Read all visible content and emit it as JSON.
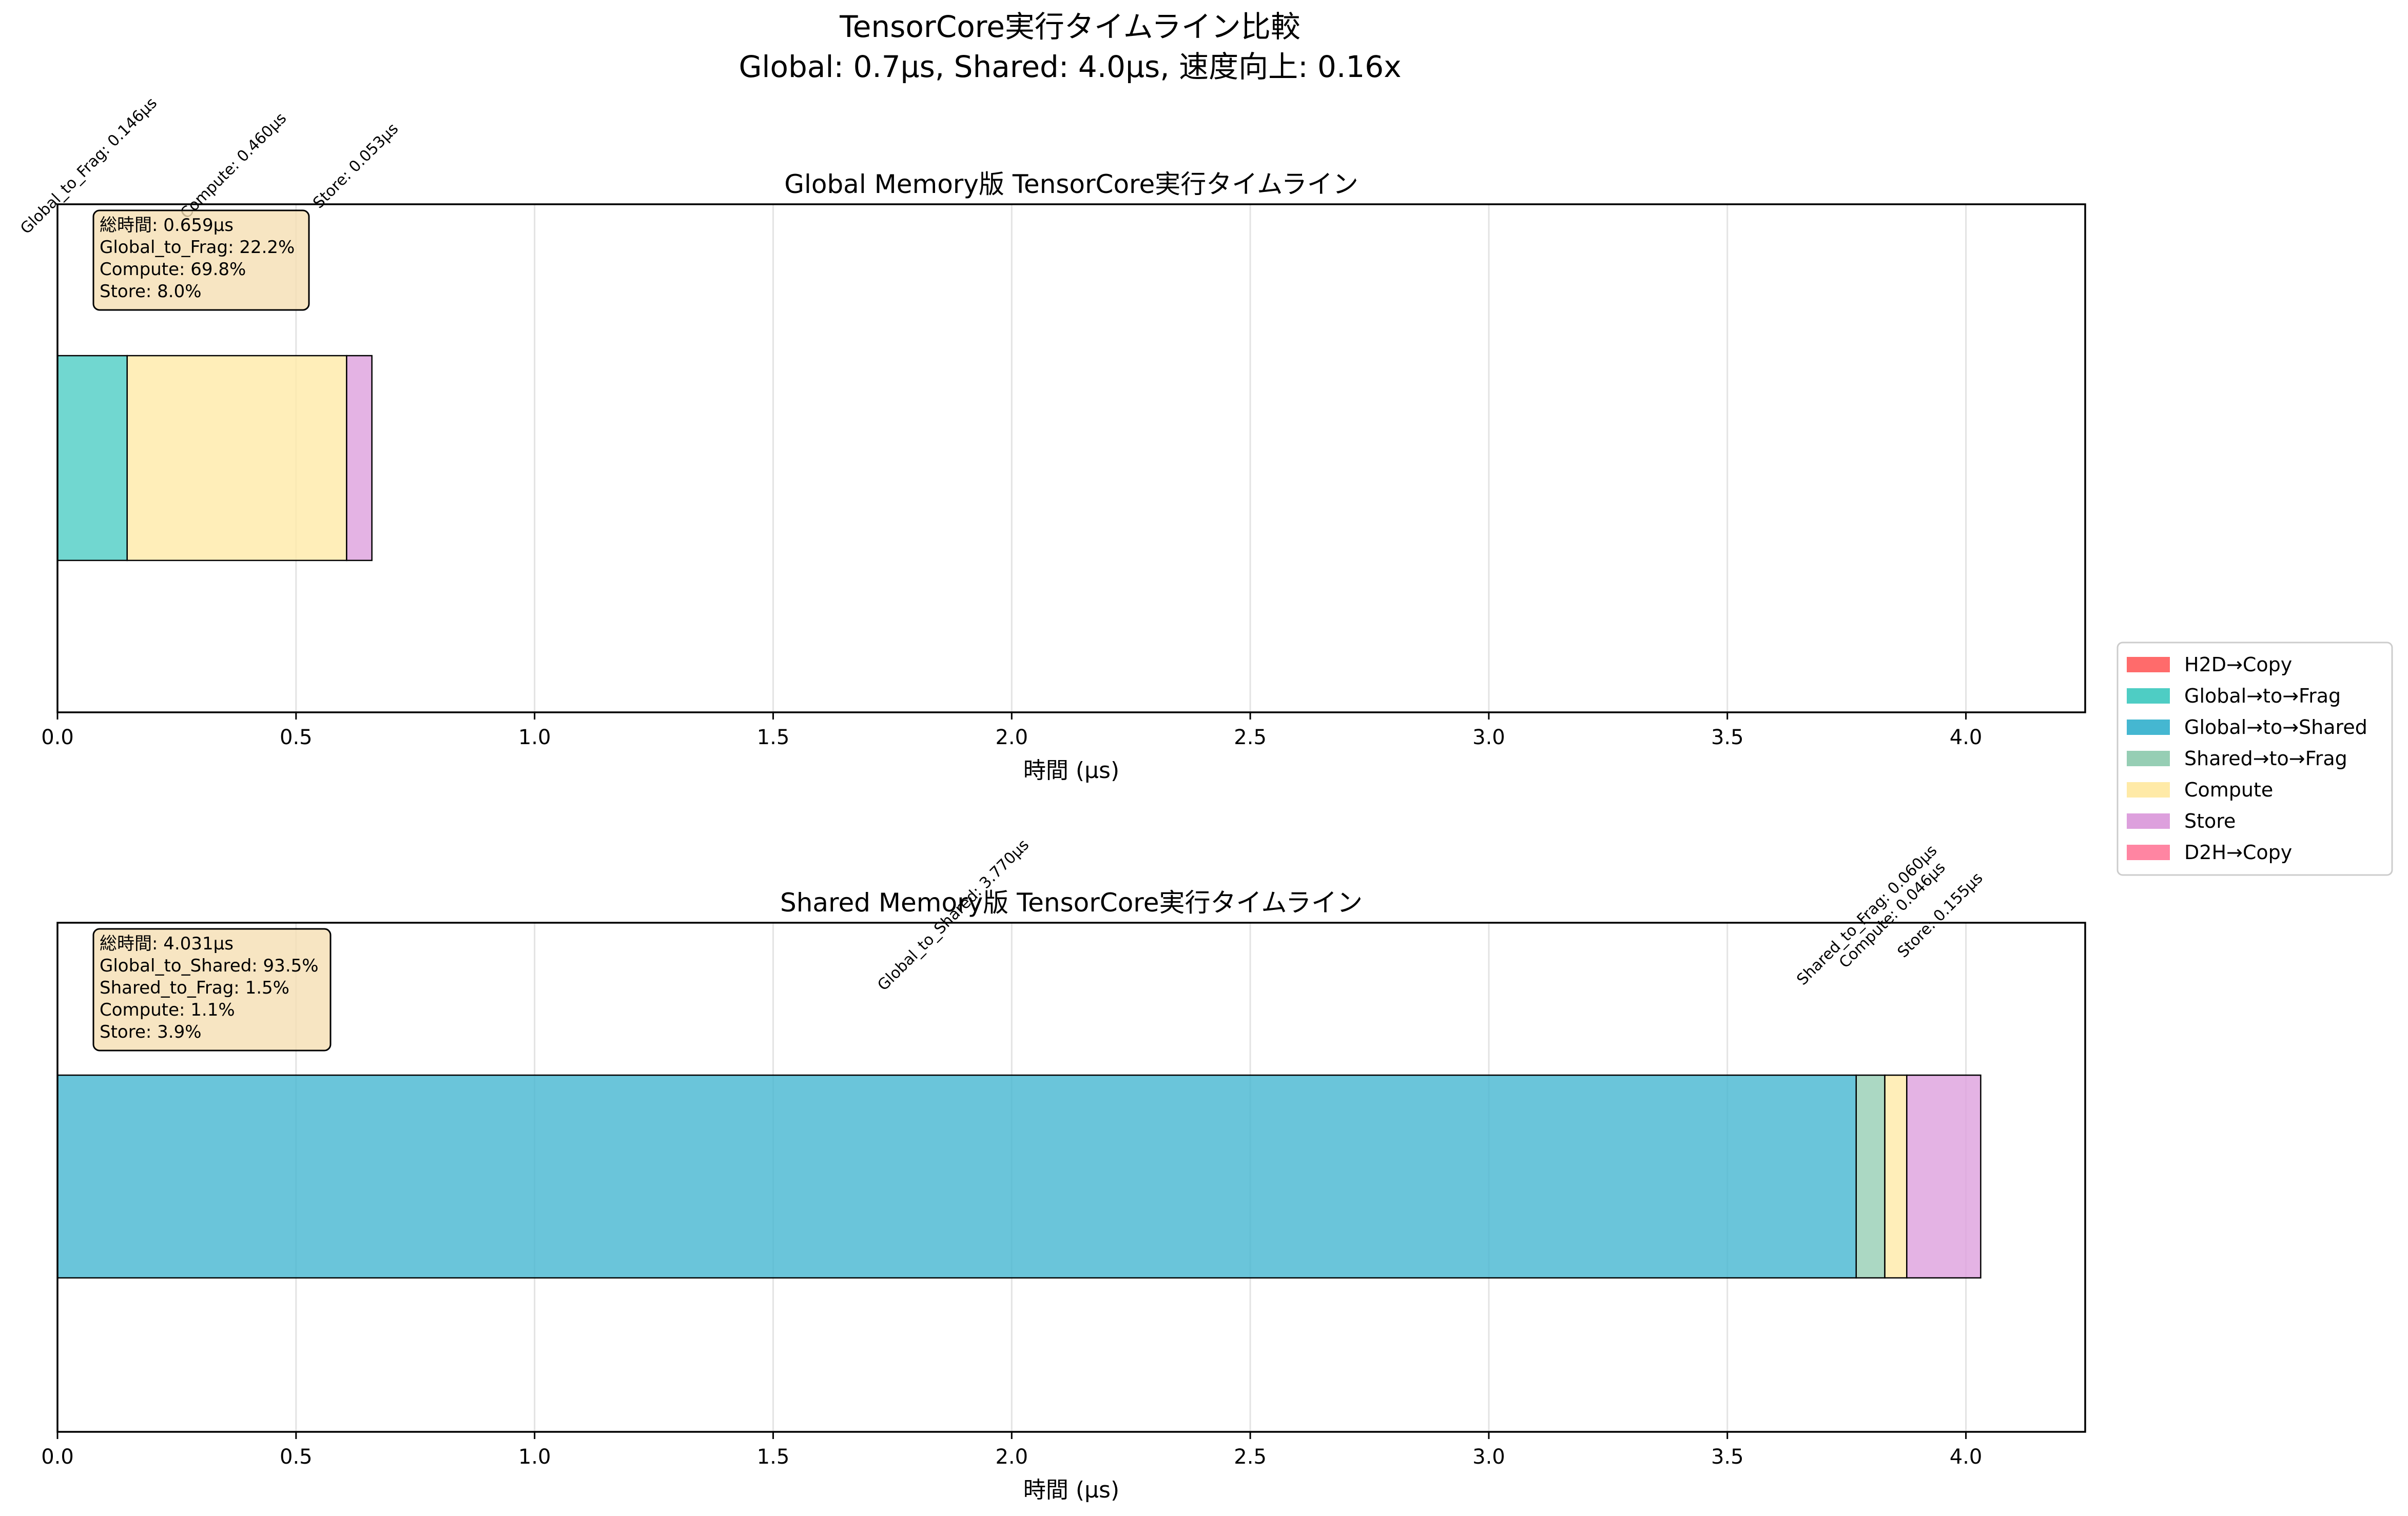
{
  "figure": {
    "suptitle_line1": "TensorCore実行タイムライン比較",
    "suptitle_line2": "Global: 0.7μs, Shared: 4.0μs, 速度向上: 0.16x"
  },
  "legend": [
    {
      "label": "H2D→Copy",
      "color": "#FF6B6B"
    },
    {
      "label": "Global→to→Frag",
      "color": "#4ECDC4"
    },
    {
      "label": "Global→to→Shared",
      "color": "#45B7D1"
    },
    {
      "label": "Shared→to→Frag",
      "color": "#96CEB4"
    },
    {
      "label": "Compute",
      "color": "#FFEAA7"
    },
    {
      "label": "Store",
      "color": "#DDA0DD"
    },
    {
      "label": "D2H→Copy",
      "color": "#FF85A2"
    }
  ],
  "chart_data": [
    {
      "type": "bar",
      "orientation": "horizontal-stacked-timeline",
      "title": "Global Memory版 TensorCore実行タイムライン",
      "xlabel": "時間 (μs)",
      "ylabel": "",
      "xlim": [
        0,
        4.25
      ],
      "xticks": [
        "0.0",
        "0.5",
        "1.0",
        "1.5",
        "2.0",
        "2.5",
        "3.0",
        "3.5",
        "4.0"
      ],
      "grid": true,
      "segments": [
        {
          "name": "Global_to_Frag",
          "start": 0.0,
          "duration": 0.146,
          "color": "#4ECDC4",
          "label": "Global_to_Frag: 0.146μs"
        },
        {
          "name": "Compute",
          "start": 0.146,
          "duration": 0.46,
          "color": "#FFEAA7",
          "label": "Compute: 0.460μs"
        },
        {
          "name": "Store",
          "start": 0.606,
          "duration": 0.053,
          "color": "#DDA0DD",
          "label": "Store: 0.053μs"
        }
      ],
      "summary": [
        "総時間: 0.659μs",
        "Global_to_Frag: 22.2%",
        "Compute: 69.8%",
        "Store: 8.0%"
      ]
    },
    {
      "type": "bar",
      "orientation": "horizontal-stacked-timeline",
      "title": "Shared Memory版 TensorCore実行タイムライン",
      "xlabel": "時間 (μs)",
      "ylabel": "",
      "xlim": [
        0,
        4.25
      ],
      "xticks": [
        "0.0",
        "0.5",
        "1.0",
        "1.5",
        "2.0",
        "2.5",
        "3.0",
        "3.5",
        "4.0"
      ],
      "grid": true,
      "segments": [
        {
          "name": "Global_to_Shared",
          "start": 0.0,
          "duration": 3.77,
          "color": "#45B7D1",
          "label": "Global_to_Shared: 3.770μs"
        },
        {
          "name": "Shared_to_Frag",
          "start": 3.77,
          "duration": 0.06,
          "color": "#96CEB4",
          "label": "Shared_to_Frag: 0.060μs"
        },
        {
          "name": "Compute",
          "start": 3.83,
          "duration": 0.046,
          "color": "#FFEAA7",
          "label": "Compute: 0.046μs"
        },
        {
          "name": "Store",
          "start": 3.876,
          "duration": 0.155,
          "color": "#DDA0DD",
          "label": "Store: 0.155μs"
        }
      ],
      "summary": [
        "総時間: 4.031μs",
        "Global_to_Shared: 93.5%",
        "Shared_to_Frag: 1.5%",
        "Compute: 1.1%",
        "Store: 3.9%"
      ]
    }
  ]
}
